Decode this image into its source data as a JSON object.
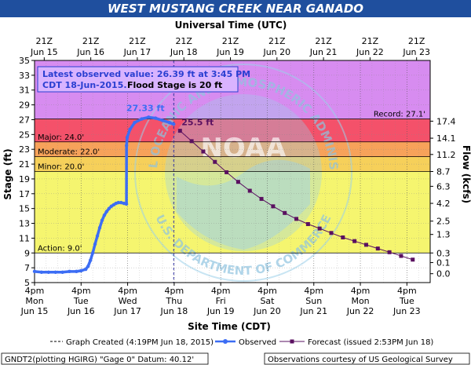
{
  "colors": {
    "title_bar": "#1f4f9e",
    "record_zone": "#d78cf0",
    "major_zone": "#f4516a",
    "moderate_zone": "#f7a25a",
    "minor_zone": "#f6d05a",
    "action_zone": "#f5f56f",
    "normal_zone": "#ffffff",
    "observed": "#3c6df4",
    "forecast": "#5a1060",
    "watermark": "#9bd0ea"
  },
  "chart_data": {
    "type": "line",
    "title": "WEST MUSTANG CREEK NEAR GANADO",
    "top_axis_title": "Universal Time (UTC)",
    "bottom_axis_title": "Site Time (CDT)",
    "ylabel": "Stage (ft)",
    "ylabel_right": "Flow (kcfs)",
    "ylim": [
      5,
      35
    ],
    "xlim_days": [
      0,
      8.5
    ],
    "y_ticks": [
      5,
      7,
      9,
      11,
      13,
      15,
      17,
      19,
      21,
      23,
      25,
      27,
      29,
      31,
      33,
      35
    ],
    "top_ticks": [
      {
        "x": 0.208,
        "line1": "21Z",
        "line2": "Jun 15"
      },
      {
        "x": 1.208,
        "line1": "21Z",
        "line2": "Jun 16"
      },
      {
        "x": 2.208,
        "line1": "21Z",
        "line2": "Jun 17"
      },
      {
        "x": 3.208,
        "line1": "21Z",
        "line2": "Jun 18"
      },
      {
        "x": 4.208,
        "line1": "21Z",
        "line2": "Jun 19"
      },
      {
        "x": 5.208,
        "line1": "21Z",
        "line2": "Jun 20"
      },
      {
        "x": 6.208,
        "line1": "21Z",
        "line2": "Jun 21"
      },
      {
        "x": 7.208,
        "line1": "21Z",
        "line2": "Jun 22"
      },
      {
        "x": 8.208,
        "line1": "21Z",
        "line2": "Jun 23"
      }
    ],
    "bottom_ticks": [
      {
        "x": 0,
        "line1": "4pm",
        "line2": "Mon",
        "line3": "Jun 15"
      },
      {
        "x": 1,
        "line1": "4pm",
        "line2": "Tue",
        "line3": "Jun 16"
      },
      {
        "x": 2,
        "line1": "4pm",
        "line2": "Wed",
        "line3": "Jun 17"
      },
      {
        "x": 3,
        "line1": "4pm",
        "line2": "Thu",
        "line3": "Jun 18"
      },
      {
        "x": 4,
        "line1": "4pm",
        "line2": "Fri",
        "line3": "Jun 19"
      },
      {
        "x": 5,
        "line1": "4pm",
        "line2": "Sat",
        "line3": "Jun 20"
      },
      {
        "x": 6,
        "line1": "4pm",
        "line2": "Sun",
        "line3": "Jun 21"
      },
      {
        "x": 7,
        "line1": "4pm",
        "line2": "Mon",
        "line3": "Jun 22"
      },
      {
        "x": 8,
        "line1": "4pm",
        "line2": "Tue",
        "line3": "Jun 23"
      }
    ],
    "flow_ticks": [
      {
        "stage": 6.2,
        "label": "0.0"
      },
      {
        "stage": 7.7,
        "label": "0.1"
      },
      {
        "stage": 9.0,
        "label": "0.3"
      },
      {
        "stage": 11.5,
        "label": "1.3"
      },
      {
        "stage": 13.3,
        "label": "2.5"
      },
      {
        "stage": 15.7,
        "label": "4.2"
      },
      {
        "stage": 18.0,
        "label": "6.3"
      },
      {
        "stage": 20.0,
        "label": "8.7"
      },
      {
        "stage": 22.3,
        "label": "11.2"
      },
      {
        "stage": 24.5,
        "label": "14.1"
      },
      {
        "stage": 26.8,
        "label": "17.4"
      }
    ],
    "stage_zones": [
      {
        "name": "record",
        "from": 27.1,
        "to": 35,
        "color": "#d78cf0"
      },
      {
        "name": "major",
        "from": 24.0,
        "to": 27.1,
        "color": "#f4516a"
      },
      {
        "name": "moderate",
        "from": 22.0,
        "to": 24.0,
        "color": "#f7a25a"
      },
      {
        "name": "minor",
        "from": 20.0,
        "to": 22.0,
        "color": "#f6d05a"
      },
      {
        "name": "action",
        "from": 9.0,
        "to": 20.0,
        "color": "#f5f56f"
      },
      {
        "name": "normal",
        "from": 5,
        "to": 9.0,
        "color": "#ffffff"
      }
    ],
    "thresholds": [
      {
        "label": "Record: 27.1'",
        "value": 27.1,
        "side": "right"
      },
      {
        "label": "Major: 24.0'",
        "value": 24.0,
        "side": "left"
      },
      {
        "label": "Moderate: 22.0'",
        "value": 22.0,
        "side": "left"
      },
      {
        "label": "Minor: 20.0'",
        "value": 20.0,
        "side": "left"
      },
      {
        "label": "Action: 9.0'",
        "value": 9.0,
        "side": "left"
      }
    ],
    "graph_created_x": 2.99,
    "observed": {
      "name": "Observed",
      "color": "#3c6df4",
      "x": [
        0.0,
        0.15,
        0.3,
        0.45,
        0.6,
        0.75,
        0.9,
        1.0,
        1.1,
        1.15,
        1.2,
        1.25,
        1.3,
        1.35,
        1.4,
        1.45,
        1.5,
        1.55,
        1.6,
        1.65,
        1.7,
        1.75,
        1.8,
        1.86,
        1.92,
        1.975,
        1.976,
        1.99,
        2.05,
        2.15,
        2.3,
        2.45,
        2.6,
        2.75,
        2.9,
        2.99
      ],
      "y": [
        6.5,
        6.4,
        6.4,
        6.4,
        6.4,
        6.5,
        6.5,
        6.6,
        6.8,
        7.2,
        8.0,
        9.0,
        10.2,
        11.3,
        12.4,
        13.4,
        14.1,
        14.6,
        15.0,
        15.3,
        15.5,
        15.7,
        15.8,
        15.8,
        15.7,
        15.6,
        23.5,
        24.6,
        25.7,
        26.6,
        27.1,
        27.33,
        27.2,
        26.9,
        26.6,
        26.39
      ]
    },
    "forecast": {
      "name": "Forecast (issued 2:53PM Jun 18)",
      "color": "#5a1060",
      "x": [
        3.125,
        3.375,
        3.625,
        3.875,
        4.125,
        4.375,
        4.625,
        4.875,
        5.125,
        5.375,
        5.625,
        5.875,
        6.125,
        6.375,
        6.625,
        6.875,
        7.125,
        7.375,
        7.625,
        7.875,
        8.125
      ],
      "y": [
        25.5,
        24.1,
        22.7,
        21.3,
        19.9,
        18.6,
        17.4,
        16.3,
        15.3,
        14.4,
        13.6,
        12.9,
        12.3,
        11.7,
        11.1,
        10.6,
        10.1,
        9.6,
        9.1,
        8.6,
        8.1
      ]
    },
    "annotations": {
      "crest": "27.33 ft",
      "forecast_start": "25.5 ft"
    },
    "info_box": {
      "line1": "Latest observed value: 26.39 ft at 3:45 PM",
      "line2_a": "CDT 18-Jun-2015.",
      "line2_b": "Flood Stage is 20 ft"
    },
    "legend": {
      "graph_created": "Graph Created (4:19PM Jun 18, 2015)",
      "observed": "Observed",
      "forecast": "Forecast (issued 2:53PM Jun 18)"
    },
    "footer": {
      "left": "GNDT2(plotting HGIRG) \"Gage 0\" Datum: 40.12'",
      "right": "Observations courtesy of US Geological Survey"
    },
    "watermark": {
      "top_text": "NATIONAL OCEANIC AND ATMOSPHERIC ADMINISTRATION",
      "bottom_text": "U.S. DEPARTMENT OF COMMERCE",
      "center_text": "NOAA"
    },
    "grid": true
  }
}
